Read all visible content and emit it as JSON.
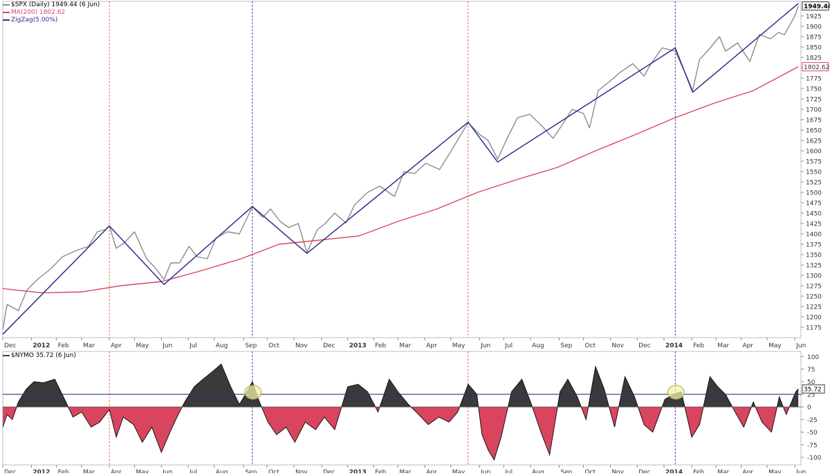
{
  "colors": {
    "price": "#8a8a8a",
    "ma": "#d9455f",
    "zigzag": "#2d2d8a",
    "osc_positive": "#3a3a3a",
    "osc_negative": "#d9455f",
    "vline_red": "#e0724f",
    "vline_blue": "#3b45b8",
    "hline": "#2d2d8a",
    "highlight": "#f3f0a8"
  },
  "chart_data": [
    {
      "type": "line",
      "title": "",
      "legend_placement": "top-left",
      "legend": [
        {
          "key": "price",
          "label": "$SPX (Daily) 1949.44 (6 Jun)"
        },
        {
          "key": "ma",
          "label": "MA(200) 1802.62"
        },
        {
          "key": "zigzag",
          "label": "ZigZag(5.00%)"
        }
      ],
      "ylim": [
        1150,
        1960
      ],
      "y_ticks": [
        1175,
        1200,
        1225,
        1250,
        1275,
        1300,
        1325,
        1350,
        1375,
        1400,
        1425,
        1450,
        1475,
        1500,
        1525,
        1550,
        1575,
        1600,
        1625,
        1650,
        1675,
        1700,
        1725,
        1750,
        1775,
        1800,
        1825,
        1850,
        1875,
        1900,
        1925
      ],
      "x_axis": {
        "range": [
          "2011-12-01",
          "2014-06-09"
        ],
        "ticks": [
          {
            "date": "2011-12-01",
            "label": "Dec",
            "bold": false
          },
          {
            "date": "2012-01-03",
            "label": "2012",
            "bold": true
          },
          {
            "date": "2012-02-01",
            "label": "Feb",
            "bold": false
          },
          {
            "date": "2012-03-01",
            "label": "Mar",
            "bold": false
          },
          {
            "date": "2012-04-02",
            "label": "Apr",
            "bold": false
          },
          {
            "date": "2012-05-01",
            "label": "May",
            "bold": false
          },
          {
            "date": "2012-06-01",
            "label": "Jun",
            "bold": false
          },
          {
            "date": "2012-07-02",
            "label": "Jul",
            "bold": false
          },
          {
            "date": "2012-08-01",
            "label": "Aug",
            "bold": false
          },
          {
            "date": "2012-09-04",
            "label": "Sep",
            "bold": false
          },
          {
            "date": "2012-10-01",
            "label": "Oct",
            "bold": false
          },
          {
            "date": "2012-11-01",
            "label": "Nov",
            "bold": false
          },
          {
            "date": "2012-12-03",
            "label": "Dec",
            "bold": false
          },
          {
            "date": "2013-01-02",
            "label": "2013",
            "bold": true
          },
          {
            "date": "2013-02-01",
            "label": "Feb",
            "bold": false
          },
          {
            "date": "2013-03-01",
            "label": "Mar",
            "bold": false
          },
          {
            "date": "2013-04-01",
            "label": "Apr",
            "bold": false
          },
          {
            "date": "2013-05-01",
            "label": "May",
            "bold": false
          },
          {
            "date": "2013-06-03",
            "label": "Jun",
            "bold": false
          },
          {
            "date": "2013-07-01",
            "label": "Jul",
            "bold": false
          },
          {
            "date": "2013-08-01",
            "label": "Aug",
            "bold": false
          },
          {
            "date": "2013-09-03",
            "label": "Sep",
            "bold": false
          },
          {
            "date": "2013-10-01",
            "label": "Oct",
            "bold": false
          },
          {
            "date": "2013-11-01",
            "label": "Nov",
            "bold": false
          },
          {
            "date": "2013-12-02",
            "label": "Dec",
            "bold": false
          },
          {
            "date": "2014-01-02",
            "label": "2014",
            "bold": true
          },
          {
            "date": "2014-02-03",
            "label": "Feb",
            "bold": false
          },
          {
            "date": "2014-03-03",
            "label": "Mar",
            "bold": false
          },
          {
            "date": "2014-04-01",
            "label": "Apr",
            "bold": false
          },
          {
            "date": "2014-05-01",
            "label": "May",
            "bold": false
          },
          {
            "date": "2014-06-02",
            "label": "Jun",
            "bold": false
          }
        ]
      },
      "series": [
        {
          "key": "price",
          "x": [
            "2011-12-01",
            "2011-12-06",
            "2011-12-19",
            "2011-12-29",
            "2012-01-10",
            "2012-01-25",
            "2012-02-08",
            "2012-02-24",
            "2012-03-09",
            "2012-03-19",
            "2012-03-28",
            "2012-04-02",
            "2012-04-10",
            "2012-04-20",
            "2012-05-01",
            "2012-05-15",
            "2012-05-25",
            "2012-06-04",
            "2012-06-12",
            "2012-06-22",
            "2012-07-03",
            "2012-07-12",
            "2012-07-24",
            "2012-08-03",
            "2012-08-16",
            "2012-08-30",
            "2012-09-14",
            "2012-09-26",
            "2012-10-05",
            "2012-10-16",
            "2012-10-26",
            "2012-11-06",
            "2012-11-16",
            "2012-11-28",
            "2012-12-07",
            "2012-12-18",
            "2012-12-31",
            "2013-01-10",
            "2013-01-25",
            "2013-02-08",
            "2013-02-25",
            "2013-03-08",
            "2013-03-20",
            "2013-04-02",
            "2013-04-18",
            "2013-04-30",
            "2013-05-10",
            "2013-05-21",
            "2013-06-03",
            "2013-06-13",
            "2013-06-24",
            "2013-07-05",
            "2013-07-17",
            "2013-07-31",
            "2013-08-14",
            "2013-08-27",
            "2013-09-09",
            "2013-09-18",
            "2013-10-01",
            "2013-10-08",
            "2013-10-18",
            "2013-10-30",
            "2013-11-13",
            "2013-11-27",
            "2013-12-10",
            "2013-12-18",
            "2013-12-31",
            "2014-01-15",
            "2014-01-28",
            "2014-02-04",
            "2014-02-12",
            "2014-02-21",
            "2014-03-07",
            "2014-03-14",
            "2014-03-28",
            "2014-04-11",
            "2014-04-22",
            "2014-05-05",
            "2014-05-14",
            "2014-05-21",
            "2014-06-02",
            "2014-06-06"
          ],
          "y": [
            1170,
            1230,
            1215,
            1265,
            1290,
            1315,
            1345,
            1360,
            1370,
            1405,
            1410,
            1419,
            1365,
            1380,
            1405,
            1340,
            1318,
            1290,
            1330,
            1330,
            1370,
            1345,
            1340,
            1390,
            1405,
            1400,
            1465,
            1440,
            1460,
            1430,
            1415,
            1425,
            1355,
            1410,
            1425,
            1450,
            1426,
            1470,
            1500,
            1515,
            1490,
            1550,
            1545,
            1570,
            1555,
            1595,
            1630,
            1668,
            1640,
            1625,
            1580,
            1630,
            1680,
            1688,
            1660,
            1630,
            1670,
            1700,
            1690,
            1655,
            1745,
            1765,
            1790,
            1810,
            1780,
            1810,
            1848,
            1840,
            1780,
            1745,
            1820,
            1840,
            1875,
            1840,
            1860,
            1815,
            1880,
            1870,
            1885,
            1880,
            1925,
            1949
          ]
        },
        {
          "key": "ma",
          "x": [
            "2011-12-01",
            "2012-01-15",
            "2012-03-01",
            "2012-04-15",
            "2012-06-01",
            "2012-07-15",
            "2012-09-01",
            "2012-10-15",
            "2012-12-01",
            "2013-01-15",
            "2013-03-01",
            "2013-04-15",
            "2013-06-01",
            "2013-07-15",
            "2013-09-01",
            "2013-10-15",
            "2013-12-01",
            "2014-01-15",
            "2014-03-01",
            "2014-04-15",
            "2014-06-06"
          ],
          "y": [
            1268,
            1258,
            1260,
            1275,
            1285,
            1310,
            1340,
            1375,
            1385,
            1395,
            1430,
            1460,
            1500,
            1530,
            1560,
            1600,
            1640,
            1680,
            1715,
            1745,
            1802.62
          ]
        },
        {
          "key": "zigzag",
          "x": [
            "2011-12-01",
            "2012-04-02",
            "2012-06-04",
            "2012-09-14",
            "2012-11-16",
            "2013-05-21",
            "2013-06-24",
            "2014-01-15",
            "2014-02-04",
            "2014-06-06"
          ],
          "y": [
            1158,
            1419,
            1278,
            1466,
            1353,
            1669,
            1573,
            1848,
            1741,
            1955
          ]
        }
      ],
      "value_labels": [
        {
          "key": "price",
          "value": "1949.44",
          "bold": true
        },
        {
          "key": "ma",
          "value": "1802.62",
          "bold": false
        }
      ],
      "vertical_markers": [
        {
          "date": "2012-04-02",
          "color": "vline_red"
        },
        {
          "date": "2012-09-14",
          "color": "vline_blue"
        },
        {
          "date": "2013-05-21",
          "color": "vline_red"
        },
        {
          "date": "2014-01-15",
          "color": "vline_blue"
        }
      ]
    },
    {
      "type": "area",
      "title": "$NYMO 35.72 (6 Jun)",
      "ylim": [
        -115,
        110
      ],
      "y_ticks": [
        100,
        75,
        50,
        25,
        0,
        -25,
        -50,
        -75,
        -100
      ],
      "threshold_line": 25,
      "value_label": "35.72",
      "series": [
        {
          "name": "$NYMO",
          "x": [
            "2011-12-01",
            "2011-12-06",
            "2011-12-12",
            "2011-12-19",
            "2011-12-28",
            "2012-01-06",
            "2012-01-17",
            "2012-01-30",
            "2012-02-09",
            "2012-02-20",
            "2012-03-01",
            "2012-03-12",
            "2012-03-22",
            "2012-04-02",
            "2012-04-10",
            "2012-04-18",
            "2012-04-30",
            "2012-05-10",
            "2012-05-21",
            "2012-06-01",
            "2012-06-11",
            "2012-06-19",
            "2012-06-28",
            "2012-07-09",
            "2012-07-19",
            "2012-07-30",
            "2012-08-09",
            "2012-08-20",
            "2012-08-30",
            "2012-09-06",
            "2012-09-14",
            "2012-09-21",
            "2012-10-02",
            "2012-10-12",
            "2012-10-23",
            "2012-11-02",
            "2012-11-14",
            "2012-11-26",
            "2012-12-06",
            "2012-12-18",
            "2013-01-02",
            "2013-01-14",
            "2013-01-25",
            "2013-02-06",
            "2013-02-19",
            "2013-03-01",
            "2013-03-13",
            "2013-03-25",
            "2013-04-05",
            "2013-04-17",
            "2013-04-29",
            "2013-05-09",
            "2013-05-21",
            "2013-05-31",
            "2013-06-06",
            "2013-06-13",
            "2013-06-20",
            "2013-06-28",
            "2013-07-10",
            "2013-07-22",
            "2013-08-01",
            "2013-08-13",
            "2013-08-23",
            "2013-09-04",
            "2013-09-13",
            "2013-09-24",
            "2013-10-04",
            "2013-10-15",
            "2013-10-25",
            "2013-11-06",
            "2013-11-18",
            "2013-11-29",
            "2013-12-10",
            "2013-12-20",
            "2014-01-03",
            "2014-01-13",
            "2014-01-22",
            "2014-02-03",
            "2014-02-12",
            "2014-02-24",
            "2014-03-05",
            "2014-03-14",
            "2014-03-25",
            "2014-04-04",
            "2014-04-15",
            "2014-04-25",
            "2014-05-06",
            "2014-05-15",
            "2014-05-23",
            "2014-06-03",
            "2014-06-06"
          ],
          "y": [
            -40,
            -15,
            -25,
            10,
            35,
            50,
            48,
            55,
            20,
            -20,
            -10,
            -40,
            -30,
            -5,
            -60,
            -20,
            -35,
            -70,
            -40,
            -90,
            -50,
            -20,
            10,
            40,
            55,
            70,
            85,
            40,
            5,
            25,
            50,
            15,
            -30,
            -55,
            -40,
            -70,
            -30,
            -45,
            -20,
            -45,
            40,
            45,
            30,
            -10,
            55,
            30,
            5,
            -15,
            -35,
            -20,
            -30,
            -10,
            45,
            25,
            -55,
            -85,
            -105,
            -60,
            30,
            55,
            10,
            -50,
            -95,
            30,
            55,
            20,
            -25,
            80,
            35,
            -40,
            60,
            20,
            -35,
            -50,
            15,
            25,
            30,
            -60,
            -35,
            60,
            40,
            25,
            -10,
            -40,
            10,
            -30,
            -50,
            20,
            -15,
            30,
            35.72
          ]
        }
      ]
    }
  ]
}
